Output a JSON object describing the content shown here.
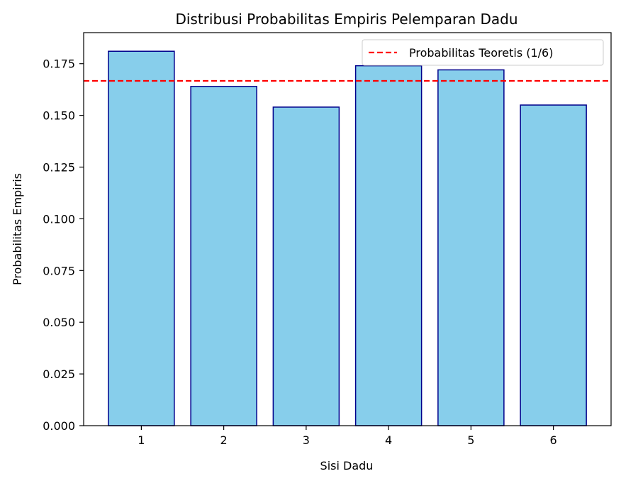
{
  "chart_data": {
    "type": "bar",
    "title": "Distribusi Probabilitas Empiris Pelemparan Dadu",
    "xlabel": "Sisi Dadu",
    "ylabel": "Probabilitas Empiris",
    "categories": [
      "1",
      "2",
      "3",
      "4",
      "5",
      "6"
    ],
    "values": [
      0.181,
      0.164,
      0.154,
      0.174,
      0.172,
      0.155
    ],
    "ylim": [
      0,
      0.19
    ],
    "yticks": [
      "0.000",
      "0.025",
      "0.050",
      "0.075",
      "0.100",
      "0.125",
      "0.150",
      "0.175"
    ],
    "reference_line": {
      "label": "Probabilitas Teoretis (1/6)",
      "value": 0.16667,
      "color": "#ff0000",
      "style": "dashed"
    },
    "bar_color": "#87ceeb",
    "bar_edge_color": "#00008b",
    "grid": false,
    "legend_position": "top-right"
  }
}
